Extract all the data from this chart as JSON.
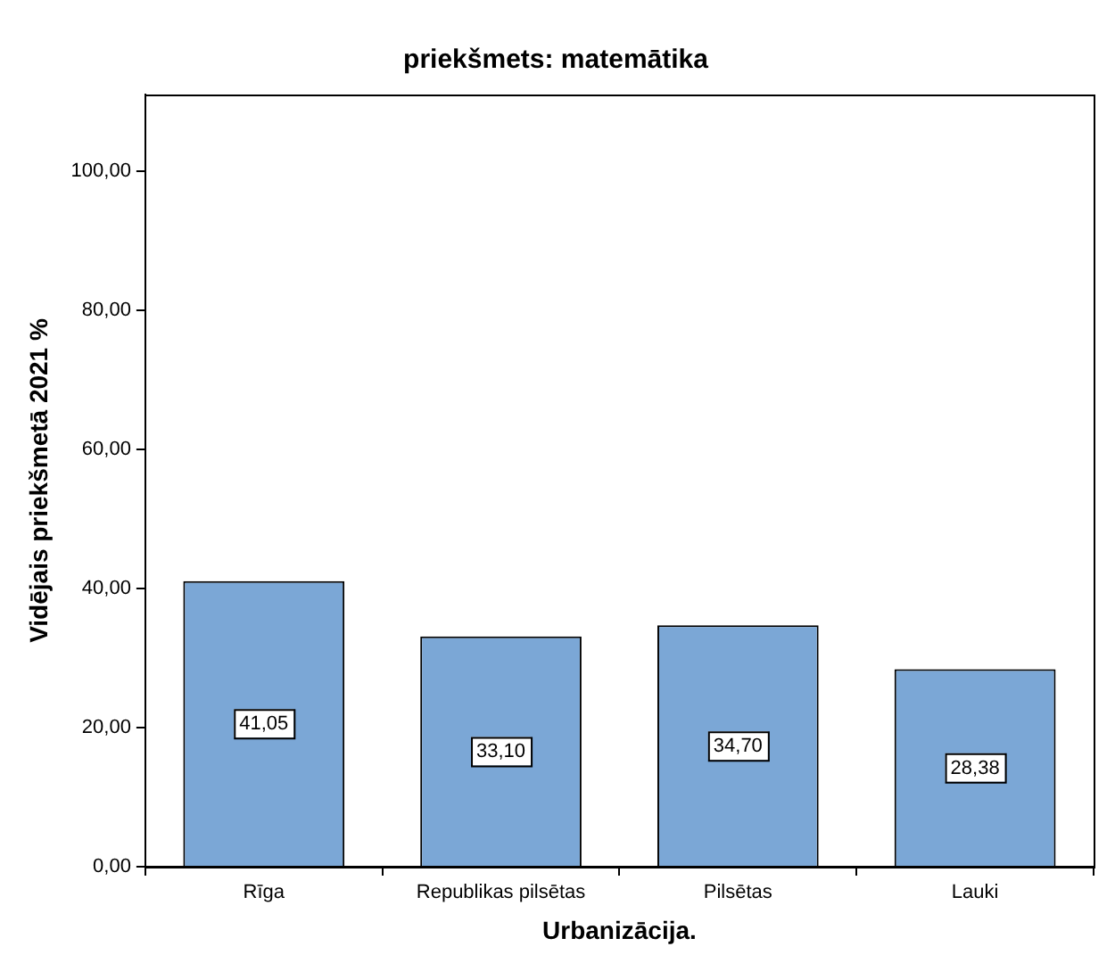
{
  "chart_data": {
    "type": "bar",
    "title": "priekšmets: matemātika",
    "xlabel": "Urbanizācija.",
    "ylabel": "Vidējais priekšmetā 2021 %",
    "categories": [
      "Rīga",
      "Republikas pilsētas",
      "Pilsētas",
      "Lauki"
    ],
    "values": [
      41.05,
      33.1,
      34.7,
      28.38
    ],
    "value_labels": [
      "41,05",
      "33,10",
      "34,70",
      "28,38"
    ],
    "color": "#7ba7d6",
    "ylim": [
      0,
      111
    ],
    "yticks": [
      {
        "value": 0,
        "label": "0,00"
      },
      {
        "value": 20,
        "label": "20,00"
      },
      {
        "value": 40,
        "label": "40,00"
      },
      {
        "value": 60,
        "label": "60,00"
      },
      {
        "value": 80,
        "label": "80,00"
      },
      {
        "value": 100,
        "label": "100,00"
      }
    ],
    "grid": false,
    "legend": false
  }
}
